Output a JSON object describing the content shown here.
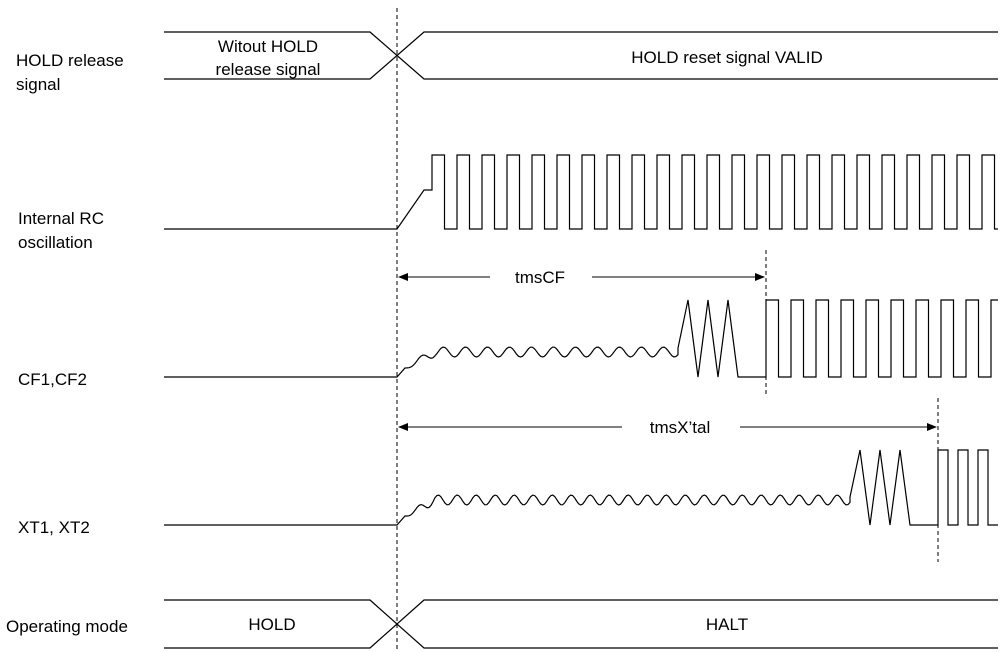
{
  "signals": {
    "hold_release": {
      "label_line1": "HOLD release",
      "label_line2": "signal"
    },
    "internal_rc": {
      "label_line1": "Internal RC",
      "label_line2": "oscillation"
    },
    "cf": {
      "label": "CF1,CF2"
    },
    "xt": {
      "label": "XT1, XT2"
    },
    "mode": {
      "label": "Operating mode"
    }
  },
  "bus_states": {
    "hold_release_before_line1": "Witout HOLD",
    "hold_release_before_line2": "release signal",
    "hold_release_after": "HOLD reset signal VALID",
    "mode_before": "HOLD",
    "mode_after": "HALT"
  },
  "timings": {
    "cf_label": "tmsCF",
    "xtal_label": "tmsX’tal"
  }
}
